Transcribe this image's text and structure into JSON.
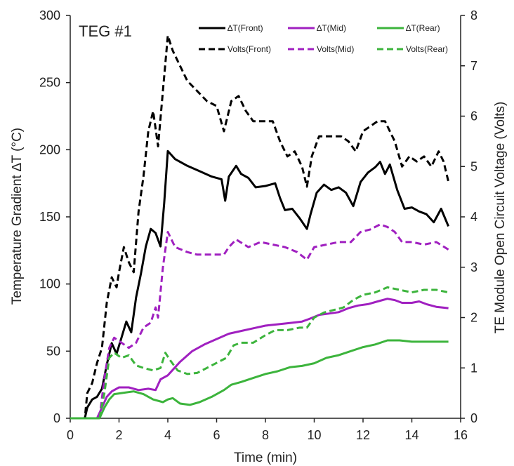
{
  "chart_data": {
    "type": "line",
    "panel_label": "TEG #1",
    "xlabel": "Time (min)",
    "ylabel_left": "Temperature Gradient ∆T (°C)",
    "ylabel_right": "TE Module Open Circuit Voltage (Volts)",
    "xlim": [
      0,
      16
    ],
    "ylim_left": [
      0,
      300
    ],
    "ylim_right": [
      0,
      8
    ],
    "x_ticks": [
      "0",
      "2",
      "4",
      "6",
      "8",
      "10",
      "12",
      "14",
      "16"
    ],
    "y_left_ticks": [
      "0",
      "50",
      "100",
      "150",
      "200",
      "250",
      "300"
    ],
    "y_right_ticks": [
      "0",
      "1",
      "2",
      "3",
      "4",
      "5",
      "6",
      "7",
      "8"
    ],
    "grid": false,
    "legend_position": "top-right",
    "series": [
      {
        "name": "∆T(Front)",
        "axis": "left",
        "color": "#000000",
        "dash": "solid",
        "points": [
          [
            0,
            0
          ],
          [
            0.6,
            0
          ],
          [
            0.7,
            8
          ],
          [
            0.9,
            14
          ],
          [
            1.1,
            16
          ],
          [
            1.3,
            22
          ],
          [
            1.5,
            40
          ],
          [
            1.7,
            56
          ],
          [
            1.9,
            48
          ],
          [
            2.1,
            60
          ],
          [
            2.3,
            72
          ],
          [
            2.5,
            64
          ],
          [
            2.7,
            90
          ],
          [
            2.9,
            108
          ],
          [
            3.1,
            128
          ],
          [
            3.3,
            141
          ],
          [
            3.5,
            138
          ],
          [
            3.7,
            128
          ],
          [
            3.85,
            160
          ],
          [
            4.0,
            199
          ],
          [
            4.3,
            193
          ],
          [
            4.8,
            188
          ],
          [
            5.3,
            184
          ],
          [
            5.8,
            180
          ],
          [
            6.2,
            178
          ],
          [
            6.35,
            162
          ],
          [
            6.5,
            180
          ],
          [
            6.8,
            188
          ],
          [
            7.0,
            182
          ],
          [
            7.3,
            179
          ],
          [
            7.6,
            172
          ],
          [
            8.0,
            173
          ],
          [
            8.4,
            175
          ],
          [
            8.6,
            164
          ],
          [
            8.8,
            155
          ],
          [
            9.1,
            156
          ],
          [
            9.4,
            149
          ],
          [
            9.7,
            141
          ],
          [
            9.85,
            152
          ],
          [
            10.1,
            168
          ],
          [
            10.4,
            174
          ],
          [
            10.7,
            170
          ],
          [
            11.0,
            172
          ],
          [
            11.3,
            168
          ],
          [
            11.6,
            158
          ],
          [
            11.9,
            176
          ],
          [
            12.2,
            183
          ],
          [
            12.5,
            187
          ],
          [
            12.7,
            191
          ],
          [
            12.9,
            182
          ],
          [
            13.1,
            189
          ],
          [
            13.4,
            170
          ],
          [
            13.7,
            156
          ],
          [
            14.0,
            157
          ],
          [
            14.3,
            154
          ],
          [
            14.6,
            152
          ],
          [
            14.9,
            146
          ],
          [
            15.2,
            156
          ],
          [
            15.5,
            143
          ]
        ]
      },
      {
        "name": "∆T(Mid)",
        "axis": "left",
        "color": "#a020c0",
        "dash": "solid",
        "points": [
          [
            0,
            0
          ],
          [
            1.1,
            0
          ],
          [
            1.3,
            8
          ],
          [
            1.5,
            16
          ],
          [
            1.7,
            20
          ],
          [
            2.0,
            23
          ],
          [
            2.4,
            23
          ],
          [
            2.8,
            21
          ],
          [
            3.2,
            22
          ],
          [
            3.5,
            21
          ],
          [
            3.7,
            29
          ],
          [
            4.0,
            32
          ],
          [
            4.5,
            42
          ],
          [
            5.0,
            50
          ],
          [
            5.5,
            55
          ],
          [
            6.0,
            59
          ],
          [
            6.5,
            63
          ],
          [
            7.0,
            65
          ],
          [
            7.5,
            67
          ],
          [
            8.0,
            69
          ],
          [
            8.5,
            70
          ],
          [
            9.0,
            71
          ],
          [
            9.5,
            72
          ],
          [
            9.8,
            74
          ],
          [
            10.2,
            77
          ],
          [
            10.6,
            78
          ],
          [
            11.0,
            79
          ],
          [
            11.4,
            82
          ],
          [
            11.8,
            84
          ],
          [
            12.2,
            85
          ],
          [
            12.6,
            87
          ],
          [
            13.0,
            89
          ],
          [
            13.3,
            88
          ],
          [
            13.6,
            86
          ],
          [
            14.0,
            86
          ],
          [
            14.3,
            87
          ],
          [
            14.6,
            85
          ],
          [
            15.0,
            83
          ],
          [
            15.5,
            82
          ]
        ]
      },
      {
        "name": "∆T(Rear)",
        "axis": "left",
        "color": "#3cb43c",
        "dash": "solid",
        "points": [
          [
            0,
            0
          ],
          [
            1.2,
            0
          ],
          [
            1.4,
            8
          ],
          [
            1.6,
            14
          ],
          [
            1.8,
            18
          ],
          [
            2.2,
            19
          ],
          [
            2.6,
            20
          ],
          [
            3.0,
            18
          ],
          [
            3.4,
            14
          ],
          [
            3.8,
            12
          ],
          [
            4.0,
            14
          ],
          [
            4.2,
            15
          ],
          [
            4.5,
            11
          ],
          [
            4.9,
            10
          ],
          [
            5.3,
            12
          ],
          [
            5.8,
            16
          ],
          [
            6.3,
            21
          ],
          [
            6.6,
            25
          ],
          [
            7.0,
            27
          ],
          [
            7.5,
            30
          ],
          [
            8.0,
            33
          ],
          [
            8.5,
            35
          ],
          [
            9.0,
            38
          ],
          [
            9.5,
            39
          ],
          [
            10.0,
            41
          ],
          [
            10.5,
            45
          ],
          [
            11.0,
            47
          ],
          [
            11.5,
            50
          ],
          [
            12.0,
            53
          ],
          [
            12.5,
            55
          ],
          [
            13.0,
            58
          ],
          [
            13.5,
            58
          ],
          [
            14.0,
            57
          ],
          [
            14.5,
            57
          ],
          [
            15.0,
            57
          ],
          [
            15.5,
            57
          ]
        ]
      },
      {
        "name": "Volts(Front)",
        "axis": "right",
        "color": "#000000",
        "dash": "dashed",
        "points": [
          [
            0,
            0
          ],
          [
            0.6,
            0
          ],
          [
            0.7,
            0.5
          ],
          [
            0.9,
            0.7
          ],
          [
            1.1,
            1.1
          ],
          [
            1.3,
            1.4
          ],
          [
            1.5,
            2.3
          ],
          [
            1.7,
            2.8
          ],
          [
            1.9,
            2.6
          ],
          [
            2.0,
            2.9
          ],
          [
            2.2,
            3.4
          ],
          [
            2.4,
            3.1
          ],
          [
            2.6,
            2.9
          ],
          [
            2.8,
            4.1
          ],
          [
            3.0,
            4.8
          ],
          [
            3.2,
            5.7
          ],
          [
            3.4,
            6.1
          ],
          [
            3.6,
            5.4
          ],
          [
            3.8,
            6.5
          ],
          [
            4.0,
            7.6
          ],
          [
            4.2,
            7.3
          ],
          [
            4.5,
            7.0
          ],
          [
            4.8,
            6.7
          ],
          [
            5.2,
            6.5
          ],
          [
            5.6,
            6.3
          ],
          [
            6.0,
            6.2
          ],
          [
            6.3,
            5.7
          ],
          [
            6.4,
            5.9
          ],
          [
            6.6,
            6.3
          ],
          [
            6.9,
            6.4
          ],
          [
            7.2,
            6.1
          ],
          [
            7.5,
            5.9
          ],
          [
            7.9,
            5.9
          ],
          [
            8.3,
            5.9
          ],
          [
            8.6,
            5.5
          ],
          [
            8.9,
            5.2
          ],
          [
            9.2,
            5.3
          ],
          [
            9.5,
            5.0
          ],
          [
            9.7,
            4.6
          ],
          [
            9.9,
            5.2
          ],
          [
            10.2,
            5.6
          ],
          [
            10.5,
            5.6
          ],
          [
            10.8,
            5.6
          ],
          [
            11.1,
            5.6
          ],
          [
            11.4,
            5.5
          ],
          [
            11.7,
            5.3
          ],
          [
            12.0,
            5.7
          ],
          [
            12.3,
            5.8
          ],
          [
            12.6,
            5.9
          ],
          [
            12.9,
            5.9
          ],
          [
            13.1,
            5.7
          ],
          [
            13.3,
            5.5
          ],
          [
            13.6,
            5.0
          ],
          [
            13.9,
            5.2
          ],
          [
            14.2,
            5.1
          ],
          [
            14.5,
            5.2
          ],
          [
            14.8,
            5.0
          ],
          [
            15.1,
            5.3
          ],
          [
            15.3,
            5.1
          ],
          [
            15.5,
            4.7
          ]
        ]
      },
      {
        "name": "Volts(Mid)",
        "axis": "right",
        "color": "#a020c0",
        "dash": "dashed",
        "points": [
          [
            0,
            0
          ],
          [
            1.2,
            0
          ],
          [
            1.4,
            0.8
          ],
          [
            1.6,
            1.4
          ],
          [
            1.8,
            1.6
          ],
          [
            2.1,
            1.5
          ],
          [
            2.4,
            1.4
          ],
          [
            2.7,
            1.5
          ],
          [
            3.0,
            1.8
          ],
          [
            3.3,
            1.9
          ],
          [
            3.5,
            2.2
          ],
          [
            3.6,
            2.0
          ],
          [
            3.8,
            3.0
          ],
          [
            4.0,
            3.7
          ],
          [
            4.3,
            3.4
          ],
          [
            4.8,
            3.3
          ],
          [
            5.2,
            3.25
          ],
          [
            5.8,
            3.25
          ],
          [
            6.3,
            3.25
          ],
          [
            6.5,
            3.4
          ],
          [
            6.8,
            3.55
          ],
          [
            7.3,
            3.4
          ],
          [
            7.8,
            3.5
          ],
          [
            8.3,
            3.45
          ],
          [
            8.8,
            3.4
          ],
          [
            9.3,
            3.3
          ],
          [
            9.7,
            3.15
          ],
          [
            10.0,
            3.4
          ],
          [
            10.5,
            3.45
          ],
          [
            11.0,
            3.5
          ],
          [
            11.5,
            3.5
          ],
          [
            11.9,
            3.7
          ],
          [
            12.3,
            3.75
          ],
          [
            12.7,
            3.85
          ],
          [
            13.0,
            3.8
          ],
          [
            13.3,
            3.7
          ],
          [
            13.6,
            3.5
          ],
          [
            14.0,
            3.5
          ],
          [
            14.5,
            3.45
          ],
          [
            15.0,
            3.5
          ],
          [
            15.5,
            3.35
          ]
        ]
      },
      {
        "name": "Volts(Rear)",
        "axis": "right",
        "color": "#3cb43c",
        "dash": "dashed",
        "points": [
          [
            0,
            0
          ],
          [
            1.2,
            0
          ],
          [
            1.4,
            0.5
          ],
          [
            1.6,
            1.2
          ],
          [
            1.8,
            1.3
          ],
          [
            2.1,
            1.2
          ],
          [
            2.4,
            1.25
          ],
          [
            2.7,
            1.05
          ],
          [
            3.0,
            1.0
          ],
          [
            3.4,
            0.95
          ],
          [
            3.7,
            1.0
          ],
          [
            3.9,
            1.3
          ],
          [
            4.1,
            1.15
          ],
          [
            4.4,
            0.95
          ],
          [
            4.8,
            0.88
          ],
          [
            5.2,
            0.9
          ],
          [
            5.6,
            1.0
          ],
          [
            6.0,
            1.1
          ],
          [
            6.4,
            1.2
          ],
          [
            6.7,
            1.45
          ],
          [
            7.0,
            1.5
          ],
          [
            7.5,
            1.5
          ],
          [
            8.0,
            1.65
          ],
          [
            8.4,
            1.75
          ],
          [
            8.9,
            1.75
          ],
          [
            9.4,
            1.8
          ],
          [
            9.7,
            1.8
          ],
          [
            10.0,
            2.0
          ],
          [
            10.4,
            2.1
          ],
          [
            10.8,
            2.15
          ],
          [
            11.2,
            2.2
          ],
          [
            11.6,
            2.35
          ],
          [
            12.0,
            2.45
          ],
          [
            12.5,
            2.5
          ],
          [
            13.0,
            2.6
          ],
          [
            13.5,
            2.55
          ],
          [
            14.0,
            2.5
          ],
          [
            14.5,
            2.55
          ],
          [
            15.0,
            2.55
          ],
          [
            15.5,
            2.5
          ]
        ]
      }
    ]
  }
}
